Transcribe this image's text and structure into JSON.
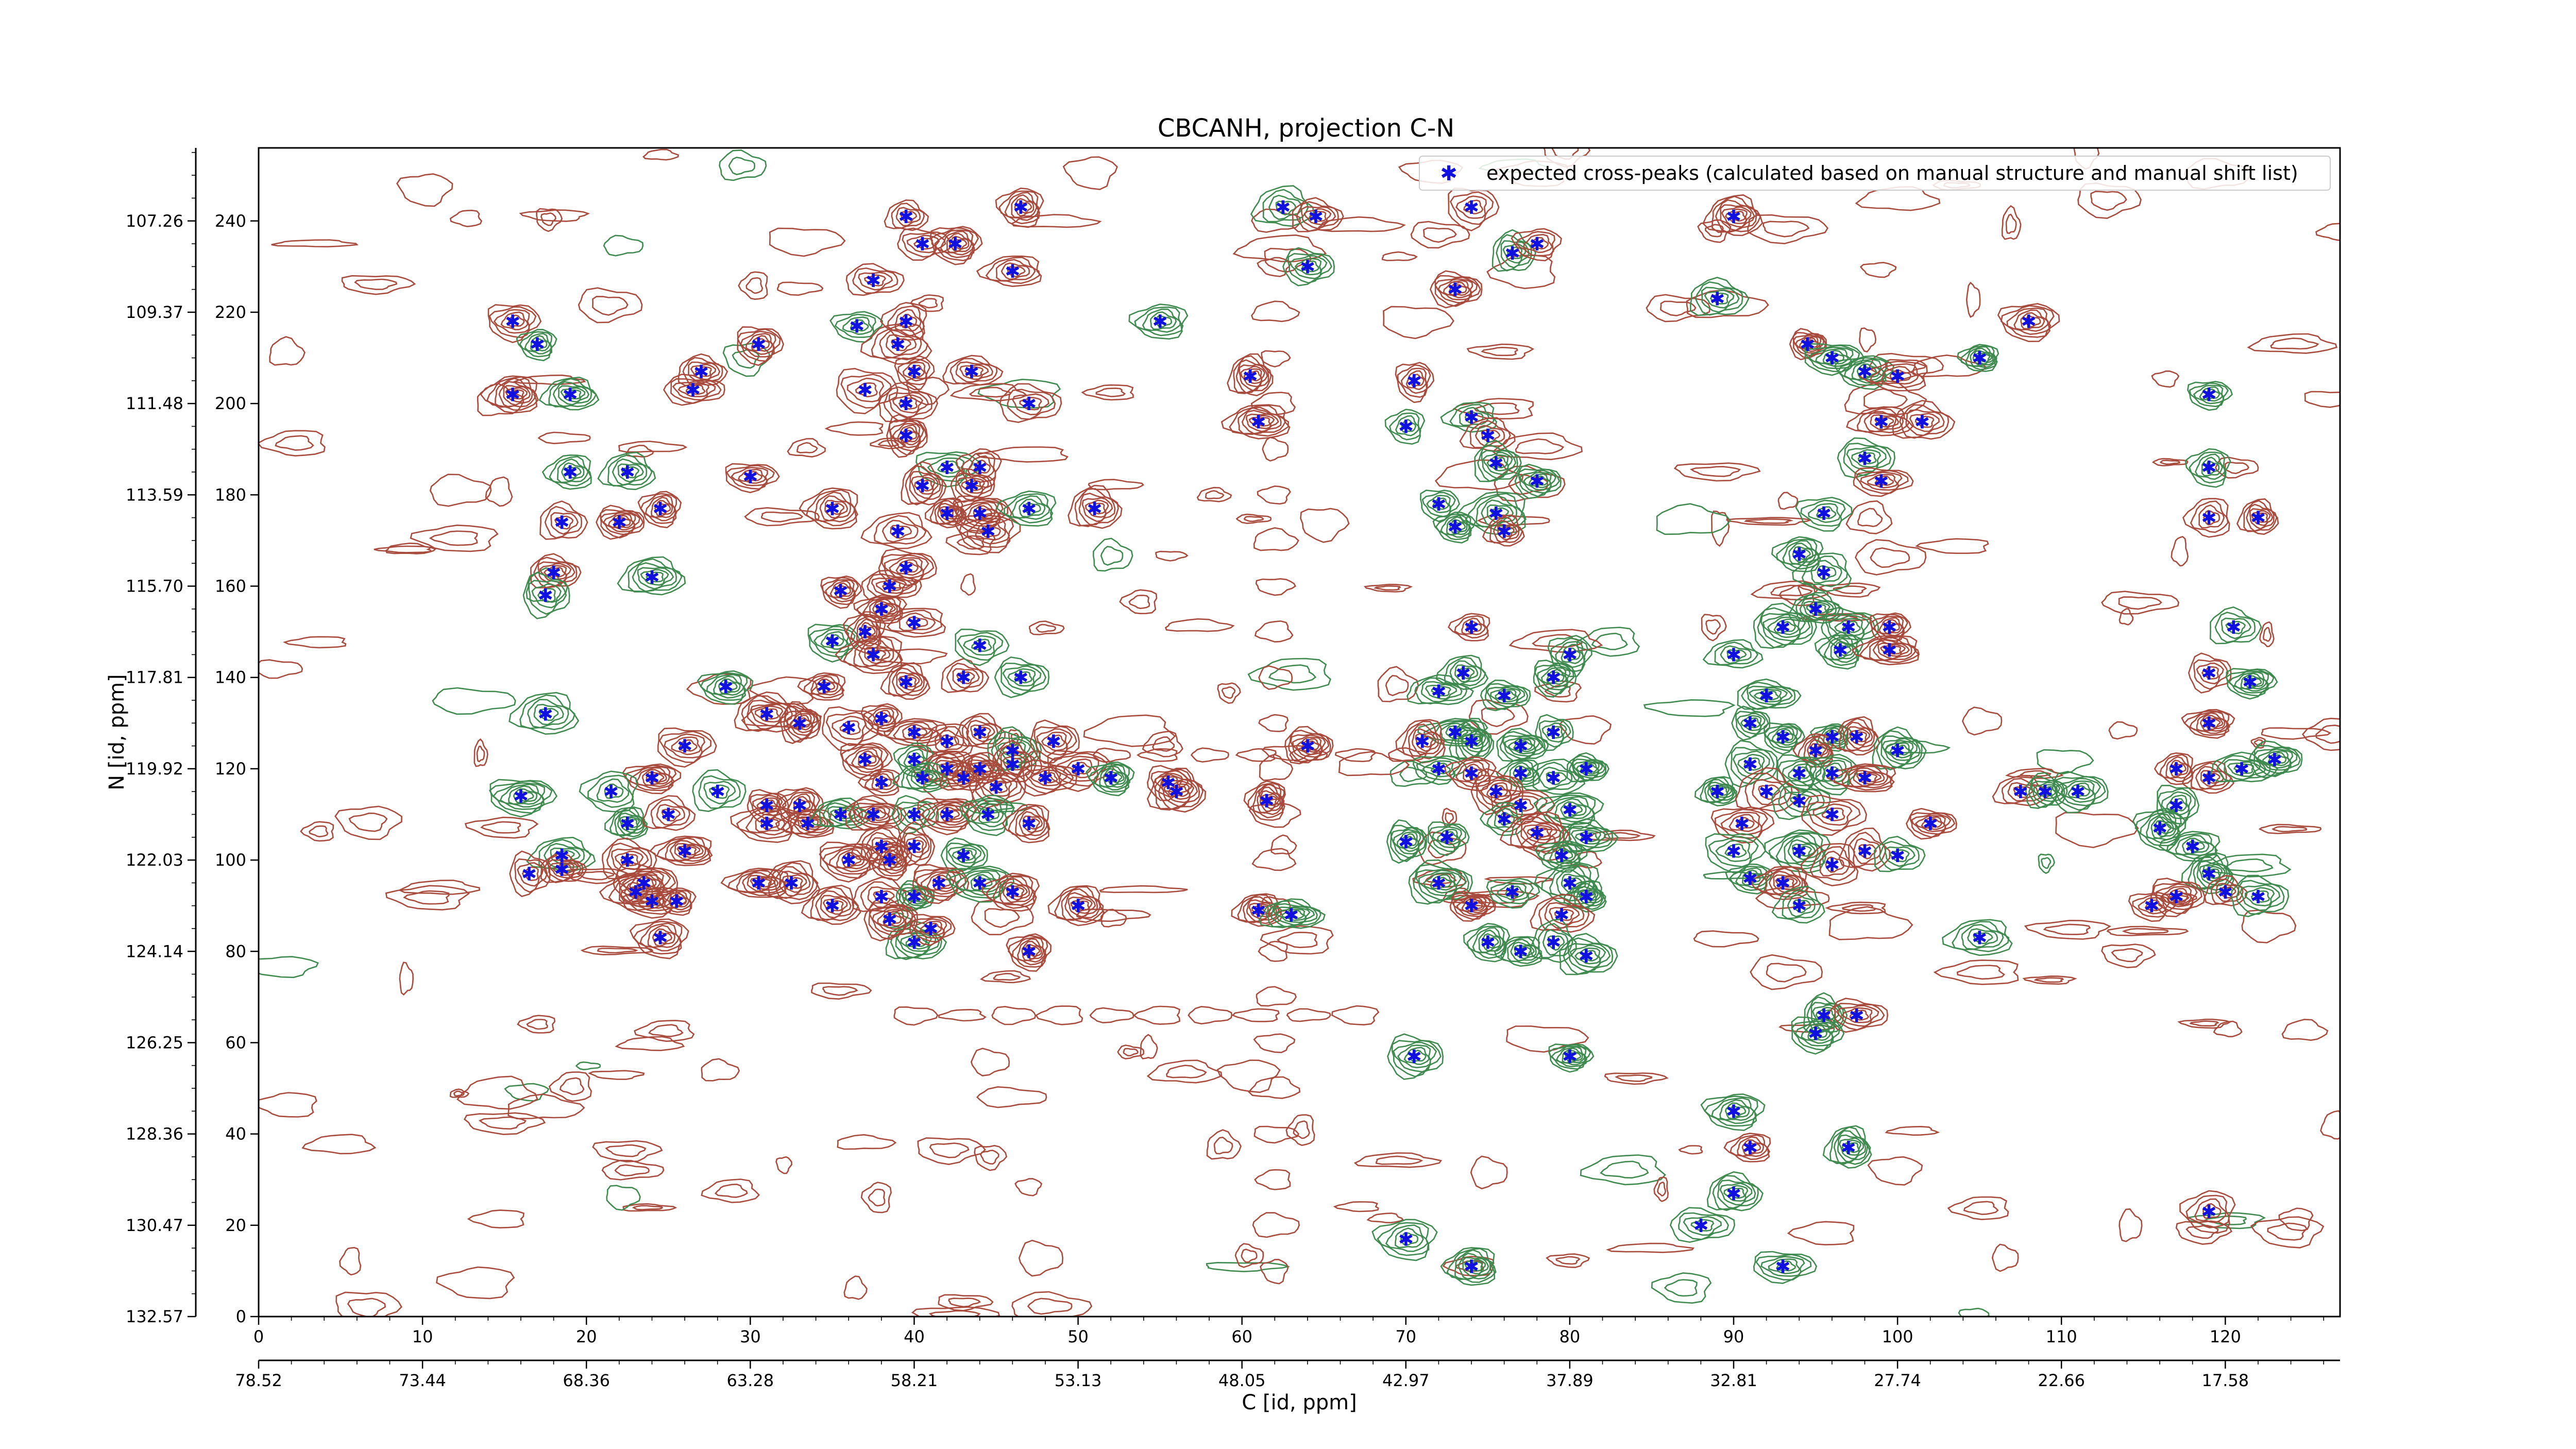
{
  "chart_data": {
    "type": "scatter",
    "title": "CBCANH, projection C-N",
    "xlabel": "C [id, ppm]",
    "ylabel": "N [id, ppm]",
    "xlim": [
      0,
      127
    ],
    "ylim": [
      0,
      256
    ],
    "grid": false,
    "legend_position": "top-right",
    "x_ticks": [
      0,
      10,
      20,
      30,
      40,
      50,
      60,
      70,
      80,
      90,
      100,
      110,
      120
    ],
    "x_ppm_ticks": [
      {
        "x": 0,
        "label": "78.52"
      },
      {
        "x": 10,
        "label": "73.44"
      },
      {
        "x": 20,
        "label": "68.36"
      },
      {
        "x": 30,
        "label": "63.28"
      },
      {
        "x": 40,
        "label": "58.21"
      },
      {
        "x": 50,
        "label": "53.13"
      },
      {
        "x": 60,
        "label": "48.05"
      },
      {
        "x": 70,
        "label": "42.97"
      },
      {
        "x": 80,
        "label": "37.89"
      },
      {
        "x": 90,
        "label": "32.81"
      },
      {
        "x": 100,
        "label": "27.74"
      },
      {
        "x": 110,
        "label": "22.66"
      },
      {
        "x": 120,
        "label": "17.58"
      }
    ],
    "y_ticks": [
      0,
      20,
      40,
      60,
      80,
      100,
      120,
      140,
      160,
      180,
      200,
      220,
      240
    ],
    "y_ppm_ticks": [
      {
        "y": 0,
        "label": "132.57"
      },
      {
        "y": 20,
        "label": "130.47"
      },
      {
        "y": 40,
        "label": "128.36"
      },
      {
        "y": 60,
        "label": "126.25"
      },
      {
        "y": 80,
        "label": "124.14"
      },
      {
        "y": 100,
        "label": "122.03"
      },
      {
        "y": 120,
        "label": "119.92"
      },
      {
        "y": 140,
        "label": "117.81"
      },
      {
        "y": 160,
        "label": "115.70"
      },
      {
        "y": 180,
        "label": "113.59"
      },
      {
        "y": 200,
        "label": "111.48"
      },
      {
        "y": 220,
        "label": "109.37"
      },
      {
        "y": 240,
        "label": "107.26"
      }
    ],
    "colors": {
      "positive": "#a84a3c",
      "negative": "#3f8a4e",
      "marker": "#1010e0"
    },
    "series": [
      {
        "name": "expected cross-peaks (calculated based on manual structure and manual shift list)",
        "points": [
          [
            39.5,
            241
          ],
          [
            37.5,
            227
          ],
          [
            40.5,
            235
          ],
          [
            42.5,
            235
          ],
          [
            46.5,
            243
          ],
          [
            46,
            229
          ],
          [
            62.5,
            243
          ],
          [
            64.5,
            241
          ],
          [
            64,
            230
          ],
          [
            15.5,
            218
          ],
          [
            17,
            213
          ],
          [
            15.5,
            202
          ],
          [
            19,
            202
          ],
          [
            27,
            207
          ],
          [
            26.5,
            203
          ],
          [
            30.5,
            213
          ],
          [
            36.5,
            217
          ],
          [
            39.5,
            218
          ],
          [
            39,
            213
          ],
          [
            43.5,
            207
          ],
          [
            47,
            200
          ],
          [
            37,
            203
          ],
          [
            40,
            207
          ],
          [
            55,
            218
          ],
          [
            61,
            196
          ],
          [
            60.5,
            206
          ],
          [
            39.5,
            200
          ],
          [
            39.5,
            193
          ],
          [
            42,
            186
          ],
          [
            44,
            186
          ],
          [
            19,
            185
          ],
          [
            22.5,
            185
          ],
          [
            18.5,
            174
          ],
          [
            22,
            174
          ],
          [
            30,
            184
          ],
          [
            24.5,
            177
          ],
          [
            35,
            177
          ],
          [
            39,
            172
          ],
          [
            40.5,
            182
          ],
          [
            43.5,
            182
          ],
          [
            44,
            176
          ],
          [
            44.5,
            172
          ],
          [
            47,
            177
          ],
          [
            42,
            176
          ],
          [
            51,
            177
          ],
          [
            38.5,
            160
          ],
          [
            39.5,
            164
          ],
          [
            35.5,
            159
          ],
          [
            38,
            155
          ],
          [
            40,
            152
          ],
          [
            24,
            162
          ],
          [
            18,
            163
          ],
          [
            17.5,
            158
          ],
          [
            35,
            148
          ],
          [
            37,
            150
          ],
          [
            37.5,
            145
          ],
          [
            39.5,
            139
          ],
          [
            43,
            140
          ],
          [
            46.5,
            140
          ],
          [
            44,
            147
          ],
          [
            28.5,
            138
          ],
          [
            34.5,
            138
          ],
          [
            17.5,
            132
          ],
          [
            31,
            132
          ],
          [
            33,
            130
          ],
          [
            36,
            129
          ],
          [
            38,
            131
          ],
          [
            40,
            128
          ],
          [
            42,
            126
          ],
          [
            44,
            128
          ],
          [
            46,
            124
          ],
          [
            48.5,
            126
          ],
          [
            37,
            122
          ],
          [
            40,
            122
          ],
          [
            42,
            120
          ],
          [
            44,
            120
          ],
          [
            46,
            121
          ],
          [
            48,
            118
          ],
          [
            50,
            120
          ],
          [
            52,
            118
          ],
          [
            38,
            117
          ],
          [
            40.5,
            118
          ],
          [
            43,
            118
          ],
          [
            45,
            116
          ],
          [
            26,
            125
          ],
          [
            24,
            118
          ],
          [
            21.5,
            115
          ],
          [
            22.5,
            108
          ],
          [
            25,
            110
          ],
          [
            28,
            115
          ],
          [
            31,
            112
          ],
          [
            33,
            112
          ],
          [
            31,
            108
          ],
          [
            33.5,
            108
          ],
          [
            35.5,
            110
          ],
          [
            37.5,
            110
          ],
          [
            40,
            110
          ],
          [
            42,
            110
          ],
          [
            44.5,
            110
          ],
          [
            47,
            108
          ],
          [
            38,
            103
          ],
          [
            40,
            103
          ],
          [
            43,
            101
          ],
          [
            36,
            100
          ],
          [
            38.5,
            100
          ],
          [
            30.5,
            95
          ],
          [
            32.5,
            95
          ],
          [
            38,
            92
          ],
          [
            40,
            92
          ],
          [
            41.5,
            95
          ],
          [
            44,
            95
          ],
          [
            46,
            93
          ],
          [
            50,
            90
          ],
          [
            56,
            115
          ],
          [
            22.5,
            100
          ],
          [
            23.5,
            95
          ],
          [
            24,
            91
          ],
          [
            25.5,
            91
          ],
          [
            23,
            93
          ],
          [
            18.5,
            101
          ],
          [
            18.5,
            98
          ],
          [
            16.5,
            97
          ],
          [
            16,
            114
          ],
          [
            24.5,
            83
          ],
          [
            26,
            102
          ],
          [
            35,
            90
          ],
          [
            40,
            82
          ],
          [
            38.5,
            87
          ],
          [
            41,
            85
          ],
          [
            47,
            80
          ],
          [
            61.5,
            113
          ],
          [
            61,
            89
          ],
          [
            63,
            88
          ],
          [
            64,
            125
          ],
          [
            55.5,
            117
          ],
          [
            70.5,
            205
          ],
          [
            70,
            195
          ],
          [
            74,
            197
          ],
          [
            75,
            193
          ],
          [
            75.5,
            187
          ],
          [
            78,
            183
          ],
          [
            72,
            178
          ],
          [
            73,
            173
          ],
          [
            75.5,
            176
          ],
          [
            76,
            172
          ],
          [
            76.5,
            233
          ],
          [
            73,
            225
          ],
          [
            74,
            243
          ],
          [
            78,
            235
          ],
          [
            74,
            151
          ],
          [
            73.5,
            141
          ],
          [
            72,
            137
          ],
          [
            76,
            136
          ],
          [
            79,
            140
          ],
          [
            80,
            145
          ],
          [
            73,
            128
          ],
          [
            71,
            126
          ],
          [
            74,
            126
          ],
          [
            77,
            125
          ],
          [
            79,
            128
          ],
          [
            72,
            120
          ],
          [
            74,
            119
          ],
          [
            77,
            119
          ],
          [
            79,
            118
          ],
          [
            81,
            120
          ],
          [
            75.5,
            115
          ],
          [
            77,
            112
          ],
          [
            80,
            111
          ],
          [
            76,
            109
          ],
          [
            78,
            106
          ],
          [
            81,
            105
          ],
          [
            70,
            104
          ],
          [
            72.5,
            105
          ],
          [
            79.5,
            101
          ],
          [
            80,
            95
          ],
          [
            81,
            92
          ],
          [
            79.5,
            88
          ],
          [
            72,
            95
          ],
          [
            74,
            90
          ],
          [
            76.5,
            93
          ],
          [
            75,
            82
          ],
          [
            77,
            80
          ],
          [
            79,
            82
          ],
          [
            81,
            79
          ],
          [
            70.5,
            57
          ],
          [
            80,
            57
          ],
          [
            70,
            17
          ],
          [
            74,
            11
          ],
          [
            90,
            241
          ],
          [
            89,
            223
          ],
          [
            94.5,
            213
          ],
          [
            96,
            210
          ],
          [
            98,
            207
          ],
          [
            100,
            206
          ],
          [
            99,
            196
          ],
          [
            101.5,
            196
          ],
          [
            98,
            188
          ],
          [
            99,
            183
          ],
          [
            95.5,
            176
          ],
          [
            94,
            167
          ],
          [
            95.5,
            163
          ],
          [
            95,
            155
          ],
          [
            93,
            151
          ],
          [
            97,
            151
          ],
          [
            99.5,
            151
          ],
          [
            96.5,
            146
          ],
          [
            99.5,
            146
          ],
          [
            90,
            145
          ],
          [
            92,
            136
          ],
          [
            91,
            130
          ],
          [
            93,
            127
          ],
          [
            96,
            127
          ],
          [
            95,
            124
          ],
          [
            97.5,
            127
          ],
          [
            100,
            124
          ],
          [
            91,
            121
          ],
          [
            94,
            119
          ],
          [
            96,
            119
          ],
          [
            98,
            118
          ],
          [
            89,
            115
          ],
          [
            92,
            115
          ],
          [
            94,
            113
          ],
          [
            96,
            110
          ],
          [
            90.5,
            108
          ],
          [
            94,
            102
          ],
          [
            96,
            99
          ],
          [
            98,
            102
          ],
          [
            100,
            101
          ],
          [
            102,
            108
          ],
          [
            90,
            102
          ],
          [
            91,
            96
          ],
          [
            93,
            95
          ],
          [
            94,
            90
          ],
          [
            95.5,
            66
          ],
          [
            97.5,
            66
          ],
          [
            95,
            62
          ],
          [
            90,
            45
          ],
          [
            91,
            37
          ],
          [
            97,
            37
          ],
          [
            90,
            27
          ],
          [
            88,
            20
          ],
          [
            93,
            11
          ],
          [
            108,
            218
          ],
          [
            105,
            210
          ],
          [
            105,
            83
          ],
          [
            107.5,
            115
          ],
          [
            109,
            115
          ],
          [
            111,
            115
          ],
          [
            119,
            202
          ],
          [
            119,
            186
          ],
          [
            119,
            175
          ],
          [
            122,
            175
          ],
          [
            120.5,
            151
          ],
          [
            119,
            141
          ],
          [
            121.5,
            139
          ],
          [
            119,
            130
          ],
          [
            117,
            120
          ],
          [
            119,
            118
          ],
          [
            121,
            120
          ],
          [
            123,
            122
          ],
          [
            117,
            112
          ],
          [
            116,
            107
          ],
          [
            118,
            103
          ],
          [
            119,
            97
          ],
          [
            120,
            93
          ],
          [
            122,
            92
          ],
          [
            117,
            92
          ],
          [
            115.5,
            90
          ],
          [
            119,
            23
          ]
        ]
      }
    ]
  }
}
